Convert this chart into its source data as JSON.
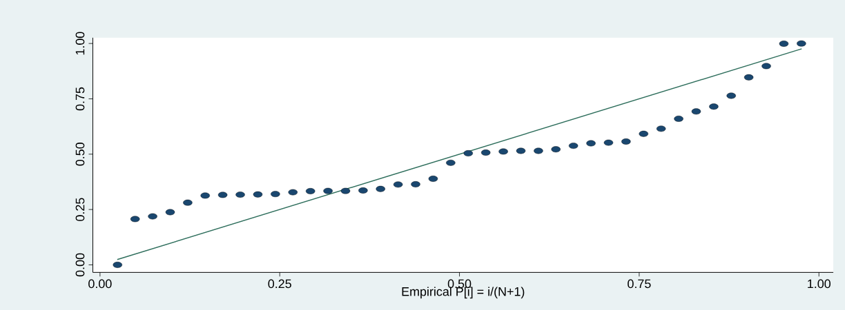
{
  "chart_data": {
    "type": "scatter",
    "xlabel": "Empirical P[i] = i/(N+1)",
    "xlim": [
      -0.01,
      1.02
    ],
    "ylim": [
      -0.034,
      1.026
    ],
    "xticks": [
      {
        "value": 0,
        "label": "0.00"
      },
      {
        "value": 0.25,
        "label": "0.25"
      },
      {
        "value": 0.5,
        "label": "0.50"
      },
      {
        "value": 0.75,
        "label": "0.75"
      },
      {
        "value": 1,
        "label": "1.00"
      }
    ],
    "yticks": [
      {
        "value": 0,
        "label": "0.00"
      },
      {
        "value": 0.25,
        "label": "0.25"
      },
      {
        "value": 0.5,
        "label": "0.50"
      },
      {
        "value": 0.75,
        "label": "0.75"
      },
      {
        "value": 1,
        "label": "1.00"
      }
    ],
    "grid": false,
    "series": [
      {
        "marker": "circle",
        "color": "#1a476f",
        "x": [
          0.0244,
          0.0488,
          0.0732,
          0.0976,
          0.122,
          0.1463,
          0.1707,
          0.1951,
          0.2195,
          0.2439,
          0.2683,
          0.2927,
          0.3171,
          0.3415,
          0.3659,
          0.3902,
          0.4146,
          0.439,
          0.4634,
          0.4878,
          0.5122,
          0.5366,
          0.561,
          0.5854,
          0.6098,
          0.6341,
          0.6585,
          0.6829,
          0.7073,
          0.7317,
          0.7561,
          0.7805,
          0.8049,
          0.8293,
          0.8537,
          0.878,
          0.9024,
          0.9268,
          0.9512,
          0.9756
        ],
        "values": [
          0.0,
          0.207,
          0.219,
          0.238,
          0.281,
          0.313,
          0.316,
          0.317,
          0.318,
          0.32,
          0.328,
          0.333,
          0.334,
          0.334,
          0.336,
          0.343,
          0.363,
          0.364,
          0.389,
          0.461,
          0.504,
          0.507,
          0.512,
          0.515,
          0.515,
          0.522,
          0.538,
          0.549,
          0.552,
          0.557,
          0.592,
          0.615,
          0.66,
          0.693,
          0.715,
          0.764,
          0.847,
          0.898,
          0.999,
          1.0
        ]
      },
      {
        "type": "line",
        "marker": "none",
        "color": "#2e6e5c",
        "x": [
          0.024,
          0.976
        ],
        "values": [
          0.024,
          0.976
        ]
      }
    ]
  }
}
